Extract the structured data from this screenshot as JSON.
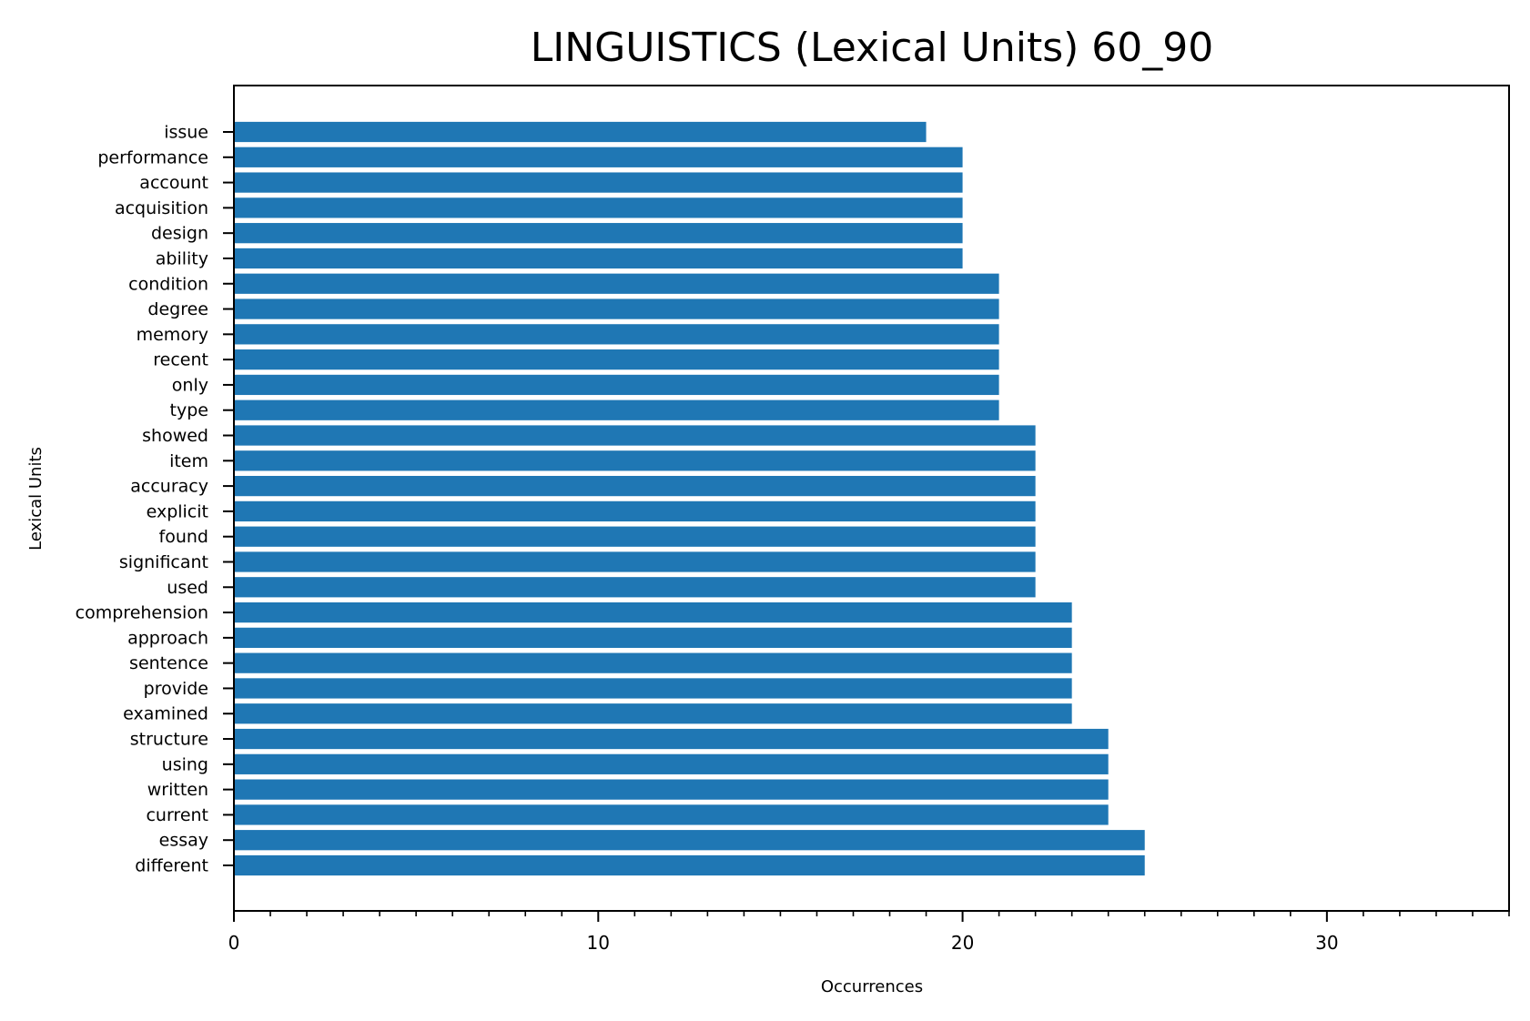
{
  "chart_data": {
    "type": "bar",
    "orientation": "horizontal",
    "title": "LINGUISTICS (Lexical Units) 60_90",
    "xlabel": "Occurrences",
    "ylabel": "Lexical Units",
    "xlim": [
      0,
      35
    ],
    "x_ticks": [
      0,
      10,
      20,
      30
    ],
    "grid": false,
    "bar_color": "#1f77b4",
    "categories": [
      "issue",
      "performance",
      "account",
      "acquisition",
      "design",
      "ability",
      "condition",
      "degree",
      "memory",
      "recent",
      "only",
      "type",
      "showed",
      "item",
      "accuracy",
      "explicit",
      "found",
      "significant",
      "used",
      "comprehension",
      "approach",
      "sentence",
      "provide",
      "examined",
      "structure",
      "using",
      "written",
      "current",
      "essay",
      "different"
    ],
    "values": [
      19,
      20,
      20,
      20,
      20,
      20,
      21,
      21,
      21,
      21,
      21,
      21,
      22,
      22,
      22,
      22,
      22,
      22,
      22,
      23,
      23,
      23,
      23,
      23,
      24,
      24,
      24,
      24,
      25,
      25
    ]
  }
}
